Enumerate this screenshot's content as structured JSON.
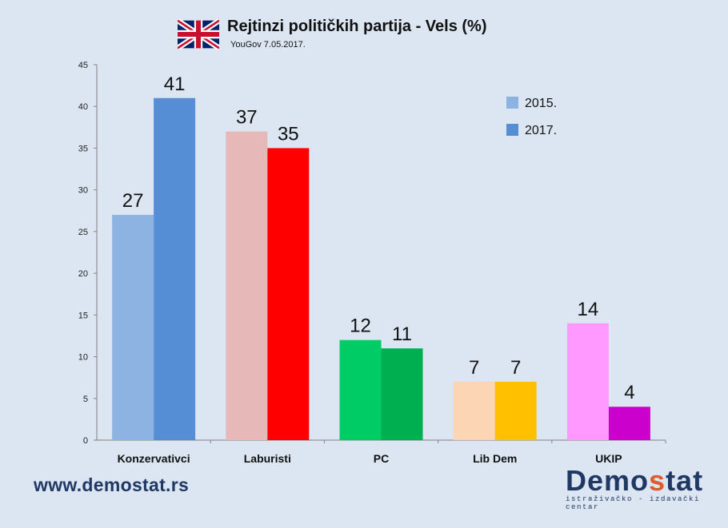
{
  "header": {
    "title": "Rejtinzi političkih partija - Vels (%)",
    "subtitle": "YouGov 7.05.2017.",
    "flag_icon": "uk-flag-icon"
  },
  "footer": {
    "website": "www.demostat.rs",
    "logo_prefix": "Demo",
    "logo_accent": "s",
    "logo_suffix": "tat",
    "logo_tagline": "istraživačko - izdavački  centar"
  },
  "colors": {
    "background": "#dce6f2",
    "logo_accent": "#e05a2b",
    "text_dark": "#1f3864"
  },
  "chart_data": {
    "type": "bar",
    "title": "Rejtinzi političkih partija - Vels (%)",
    "subtitle": "YouGov 7.05.2017.",
    "xlabel": "",
    "ylabel": "",
    "ylim": [
      0,
      45
    ],
    "yticks": [
      0,
      5,
      10,
      15,
      20,
      25,
      30,
      35,
      40,
      45
    ],
    "grid": false,
    "legend_position": "top-right",
    "categories": [
      "Konzervativci",
      "Laburisti",
      "PC",
      "Lib Dem",
      "UKIP"
    ],
    "series": [
      {
        "name": "2015.",
        "legend_color": "#8db3e2",
        "values": [
          27,
          37,
          12,
          7,
          14
        ],
        "colors": [
          "#8db3e2",
          "#e6b9b8",
          "#00cc66",
          "#fcd5b4",
          "#ff99ff"
        ]
      },
      {
        "name": "2017.",
        "legend_color": "#558ed5",
        "values": [
          41,
          35,
          11,
          7,
          4
        ],
        "colors": [
          "#558ed5",
          "#ff0000",
          "#00b050",
          "#ffc000",
          "#cc00cc"
        ]
      }
    ]
  }
}
